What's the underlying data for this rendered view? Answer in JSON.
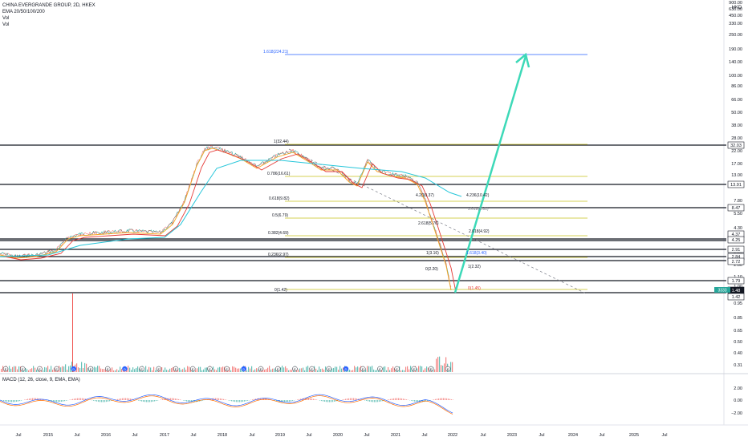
{
  "header": {
    "title": "CHINA EVERGRANDE GROUP, 2D, HKEX",
    "ind1": "EMA 20/50/100/200",
    "ind2": "Vol",
    "ind3": "Vol",
    "currency": "HKD"
  },
  "macd": {
    "legend": "MACD (12, 26, close, 9, EMA, EMA)"
  },
  "price_axis": {
    "ticks": [
      "900.00",
      "630.00",
      "450.00",
      "330.00",
      "250.00",
      "190.00",
      "140.00",
      "100.00",
      "86.00",
      "66.00",
      "50.00",
      "38.00",
      "28.00",
      "22.00",
      "17.00",
      "13.00",
      "10.00",
      "7.80",
      "5.50",
      "4.30",
      "3.30",
      "2.56",
      "2.00",
      "1.10",
      "1.00",
      "0.95",
      "0.85",
      "0.65",
      "0.50",
      "0.40",
      "0.31"
    ],
    "badges": [
      {
        "label": "32.03",
        "dark": false
      },
      {
        "label": "13.91",
        "dark": false
      },
      {
        "label": "8.47",
        "dark": false
      },
      {
        "label": "4.37",
        "dark": false
      },
      {
        "label": "4.25",
        "dark": false
      },
      {
        "label": "2.91",
        "dark": false
      },
      {
        "label": "2.84",
        "dark": false
      },
      {
        "label": "2.72",
        "dark": false
      },
      {
        "label": "1.79",
        "dark": false
      },
      {
        "label": "1.48",
        "dark": true
      },
      {
        "label": "1.42",
        "dark": false
      }
    ],
    "last_price_tag": "3333"
  },
  "macd_axis": {
    "ticks": [
      "2.00",
      "0.00",
      "−2.00"
    ]
  },
  "time_axis": {
    "labels": [
      "Jul",
      "2015",
      "Jul",
      "2016",
      "Jul",
      "2017",
      "Jul",
      "2018",
      "Jul",
      "2019",
      "Jul",
      "2020",
      "Jul",
      "2021",
      "Jul",
      "2022",
      "Jul",
      "2023",
      "Jul",
      "2024",
      "Jul",
      "2025",
      "Jul"
    ]
  },
  "fib_labels": {
    "top": "1.618(224.21)",
    "f1": "1(32.44)",
    "f786": "0.786(16.61)",
    "f618": "0.618(9.82)",
    "f5": "0.5(6.79)",
    "f382": "0.382(4.69)",
    "f236": "0.236(2.97)",
    "f0": "0(1.42)",
    "e4236": "4.236(10.42)",
    "e42b": "4.2(10.37)",
    "e2618a": "2.618(5.76)",
    "e2618b": "2.618(4.92)",
    "e3618": "3.618(6.81)",
    "r1618": "1.618(3.40)",
    "r1": "1(2.32)",
    "rz": "0(1.45)",
    "s1": "1(3.16)",
    "s0": "0(2.20)"
  },
  "event_markers": [
    "E",
    "E",
    "E",
    "E",
    "D",
    "E",
    "E",
    "D",
    "E",
    "E",
    "E",
    "E",
    "E",
    "E",
    "D",
    "E",
    "E",
    "E",
    "E",
    "E",
    "D",
    "E",
    "E",
    "E",
    "E",
    "E",
    "E"
  ]
}
